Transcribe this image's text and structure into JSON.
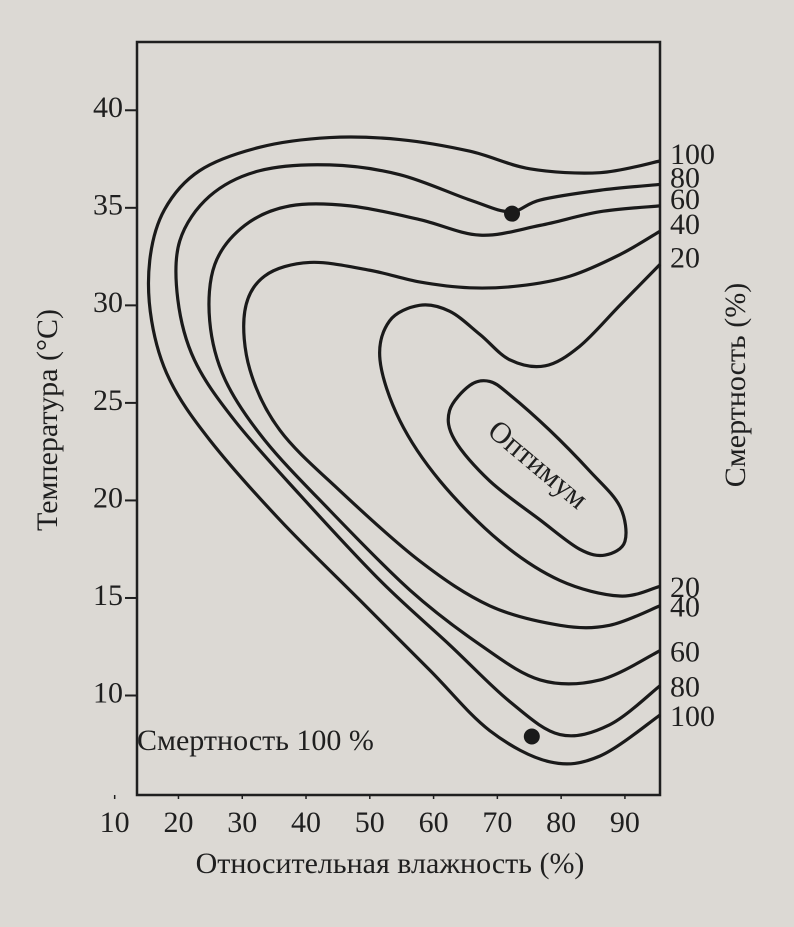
{
  "chart_data": {
    "type": "contour",
    "xlabel": "Относительная влажность (%)",
    "ylabel": "Температура (°C)",
    "y2label": "Смертность (%)",
    "annotation": "Смертность 100 %",
    "xlim": [
      13.5,
      95.5
    ],
    "ylim": [
      4.9,
      43.5
    ],
    "xticks": [
      10,
      20,
      30,
      40,
      50,
      60,
      70,
      80,
      90
    ],
    "yticks": [
      10,
      15,
      20,
      25,
      30,
      35,
      40
    ],
    "color": "#1a1a1a",
    "series": [
      {
        "level": 100,
        "x": [
          95.5,
          86.1,
          75.1,
          65.7,
          54.7,
          43.7,
          32.7,
          23.3,
          17.8,
          15.5,
          15.8,
          18.6,
          24.9,
          35.9,
          48.4,
          59.4,
          68.8,
          78.2,
          86.1,
          95.5
        ],
        "y": [
          37.4,
          36.8,
          37.0,
          37.9,
          38.5,
          38.6,
          38.1,
          36.9,
          34.9,
          32.3,
          29.2,
          26.2,
          23.1,
          19.0,
          14.9,
          11.3,
          8.2,
          6.6,
          6.9,
          9.0
        ]
      },
      {
        "level": 80,
        "x": [
          95.5,
          86.1,
          76.7,
          72.0,
          65.7,
          54.7,
          43.7,
          32.7,
          24.9,
          20.2,
          19.9,
          22.5,
          28.8,
          39.0,
          51.6,
          62.5,
          71.9,
          79.8,
          87.6,
          95.5
        ],
        "y": [
          36.2,
          35.9,
          35.4,
          34.8,
          35.4,
          36.7,
          37.2,
          36.9,
          35.6,
          33.3,
          30.3,
          27.2,
          24.1,
          20.3,
          15.9,
          12.6,
          9.7,
          8.0,
          8.5,
          10.5
        ]
      },
      {
        "level": 60,
        "x": [
          95.5,
          86.1,
          76.7,
          67.3,
          57.8,
          46.9,
          37.5,
          30.4,
          25.7,
          24.9,
          27.3,
          33.5,
          43.7,
          56.3,
          67.3,
          76.7,
          86.1,
          95.5
        ],
        "y": [
          35.1,
          34.8,
          34.1,
          33.6,
          34.4,
          35.1,
          35.1,
          34.1,
          32.1,
          29.2,
          26.2,
          23.1,
          19.5,
          15.4,
          12.6,
          10.8,
          10.8,
          12.3
        ]
      },
      {
        "level": 40,
        "x": [
          95.5,
          89.2,
          81.4,
          73.5,
          65.7,
          57.8,
          50.0,
          40.6,
          33.5,
          30.4,
          31.2,
          35.9,
          45.3,
          57.8,
          68.8,
          79.8,
          87.6,
          95.5
        ],
        "y": [
          33.8,
          32.6,
          31.5,
          31.0,
          30.9,
          31.2,
          31.8,
          32.2,
          31.5,
          29.7,
          26.7,
          23.6,
          20.5,
          16.9,
          14.6,
          13.6,
          13.6,
          14.6
        ]
      },
      {
        "level": 20,
        "x": [
          95.5,
          89.2,
          82.9,
          77.5,
          72.0,
          67.3,
          62.5,
          57.8,
          53.1,
          51.6,
          54.7,
          61.0,
          70.4,
          79.8,
          89.2,
          95.5
        ],
        "y": [
          32.1,
          30.0,
          27.9,
          26.9,
          27.2,
          28.5,
          29.7,
          30.0,
          29.2,
          27.2,
          24.1,
          21.0,
          17.9,
          15.9,
          15.1,
          15.6
        ]
      },
      {
        "name": "Оптимум",
        "closed": true,
        "x": [
          65.7,
          62.5,
          63.3,
          68.8,
          76.7,
          82.9,
          86.9,
          90.0,
          89.2,
          84.5,
          78.2,
          72.0,
          68.8
        ],
        "y": [
          25.9,
          24.6,
          23.1,
          21.0,
          19.0,
          17.5,
          17.2,
          17.9,
          19.7,
          21.5,
          23.6,
          25.4,
          26.1
        ]
      }
    ],
    "points": [
      {
        "x": 72.3,
        "y": 34.7
      },
      {
        "x": 75.4,
        "y": 7.9
      }
    ]
  }
}
